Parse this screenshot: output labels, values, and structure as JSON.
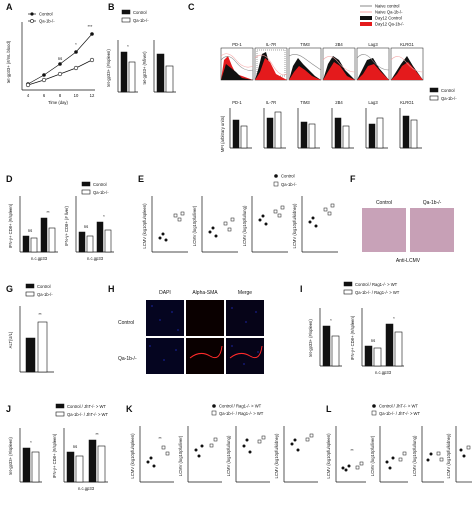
{
  "panels": {
    "A": {
      "label": "A",
      "ylabel": "tet-gp33+ (#/mL blood)",
      "xlabel": "Time (day)",
      "xticks": [
        "4",
        "6",
        "8",
        "10",
        "12"
      ],
      "legend": [
        "Control",
        "Qa-1b-/-"
      ],
      "sig": [
        "ns",
        "*",
        "***"
      ]
    },
    "B": {
      "label": "B",
      "ylabel1": "tet-gp33+ (#/spleen)",
      "ylabel2": "tet-gp33+ (#/liver)",
      "legend": [
        "Control",
        "Qa-1b-/-"
      ],
      "sig": [
        "*"
      ]
    },
    "C": {
      "label": "C",
      "legend_top": [
        "Naive control",
        "Naive Qa-1b-/-",
        "Day12 Control",
        "Day12 Qa-1b-/-"
      ],
      "markers": [
        "PD-1",
        "IL-7R",
        "TIM3",
        "2B4",
        "Lag3",
        "KLRG1"
      ],
      "legend_bottom": [
        "Control",
        "Qa-1b-/-"
      ],
      "mfi_ylabel": "MFI (arbitrary units)"
    },
    "D": {
      "label": "D",
      "ylabel1": "IFN-γ+ CD8+ (#/spleen)",
      "ylabel2": "IFN-γ+ CD8+ (# liver)",
      "xlabel": "n.c.gp33",
      "legend": [
        "Control",
        "Qa-1b-/-"
      ],
      "sig": [
        "ns",
        "**",
        "ns",
        "*"
      ]
    },
    "E": {
      "label": "E",
      "legend": [
        "Control",
        "Qa-1b-/-"
      ],
      "ylabels": [
        "LCMV (log10pfu/spleen)",
        "LCMV (log10pfu/liver)",
        "LCMV (log10pfu/lung)",
        "LCMV (log10pfu/kidney)"
      ]
    },
    "F": {
      "label": "F",
      "cols": [
        "Control",
        "Qa-1b-/-"
      ],
      "caption": "Anti-LCMV"
    },
    "G": {
      "label": "G",
      "ylabel": "ALT(U/L)",
      "legend": [
        "Control",
        "Qa-1b-/-"
      ],
      "sig": [
        "**"
      ]
    },
    "H": {
      "label": "H",
      "cols": [
        "DAPI",
        "Alpha-SMA",
        "Merge"
      ],
      "rows": [
        "Control",
        "Qa-1b-/-"
      ]
    },
    "I": {
      "label": "I",
      "legend": [
        "Control / Rag1-/- > WT",
        "Qa-1b-/- / Rag1-/- > WT"
      ],
      "ylabel1": "tet-gp33+ (#/spleen)",
      "ylabel2": "IFN-γ+ CD8+ (#/spleen)",
      "xlabel": "n.c.gp33",
      "sig": [
        "*",
        "ns",
        "*"
      ]
    },
    "J": {
      "label": "J",
      "legend": [
        "Control / JhT-/- > WT",
        "Qa-1b-/- / JhT-/- > WT"
      ],
      "ylabel1": "tet-gp33+ (#/spleen)",
      "ylabel2": "IFN-γ+ CD8+ (#/spleen)",
      "xlabel": "n.c.gp33",
      "sig": [
        "*",
        "ns",
        "**"
      ]
    },
    "K": {
      "label": "K",
      "legend": [
        "Control / Rag1-/- > WT",
        "Qa-1b-/- / Rag1-/- > WT"
      ],
      "ylabels": [
        "LCMV (log10pfu/spleen)",
        "LCMV (log10pfu/liver)",
        "LCMV (log10pfu/lung)",
        "LCMV (log10pfu/kidney)"
      ],
      "sig": [
        "**"
      ]
    },
    "L": {
      "label": "L",
      "legend": [
        "Control / JhT-/- > WT",
        "Qa-1b-/- / JhT-/- > WT"
      ],
      "ylabels": [
        "LCMV (log10pfu/spleen)",
        "LCMV (log10pfu/liver)",
        "LCMV (log10pfu/lung)",
        "LCMV (log10pfu/kidney)"
      ],
      "sig": [
        "**"
      ]
    }
  },
  "colors": {
    "control": "#111111",
    "knockout": "#ffffff",
    "day12_ko": "#e41a1c",
    "naive_ctrl": "#888888",
    "naive_ko": "#f4a6a6",
    "micro_red": "#ff2a2a",
    "micro_blue": "#2a3cff",
    "tissue": "#c8a2b8"
  }
}
